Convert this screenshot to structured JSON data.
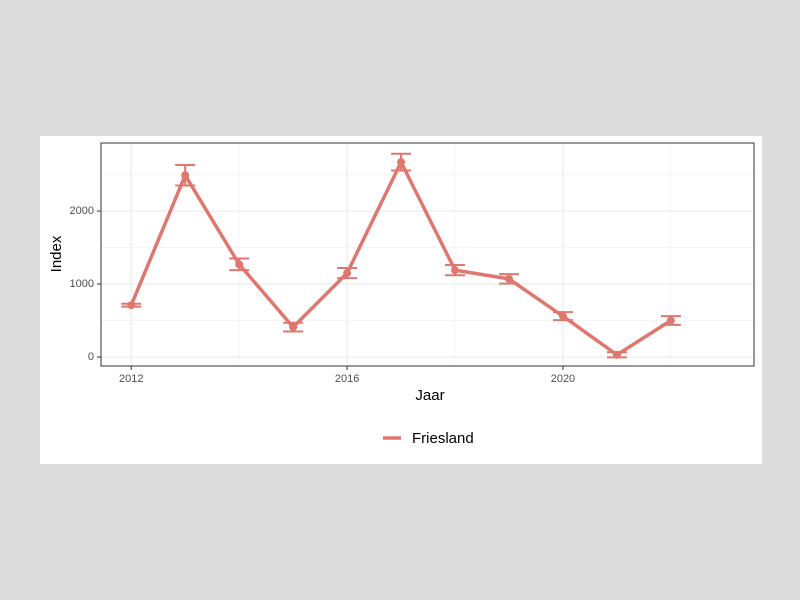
{
  "chart_data": {
    "type": "line",
    "x_label": "Jaar",
    "y_label": "Index",
    "x": [
      2012,
      2013,
      2014,
      2015,
      2016,
      2017,
      2018,
      2019,
      2020,
      2021,
      2022
    ],
    "series": [
      {
        "name": "Friesland",
        "color": "#e0776f",
        "values": [
          710,
          2490,
          1270,
          410,
          1150,
          2670,
          1190,
          1070,
          560,
          30,
          500
        ],
        "errors": [
          20,
          140,
          80,
          60,
          70,
          115,
          70,
          65,
          55,
          35,
          60
        ]
      }
    ],
    "xlim": [
      2011.44,
      2023.54
    ],
    "xticks": [
      2012,
      2016,
      2020
    ],
    "x_minor_grid": [
      2014,
      2018,
      2022
    ],
    "ylim": [
      -123,
      2932
    ],
    "yticks": [
      0,
      1000,
      2000
    ],
    "y_minor_grid": [
      500,
      1500,
      2500
    ],
    "grid": true,
    "legend": "bottom"
  }
}
